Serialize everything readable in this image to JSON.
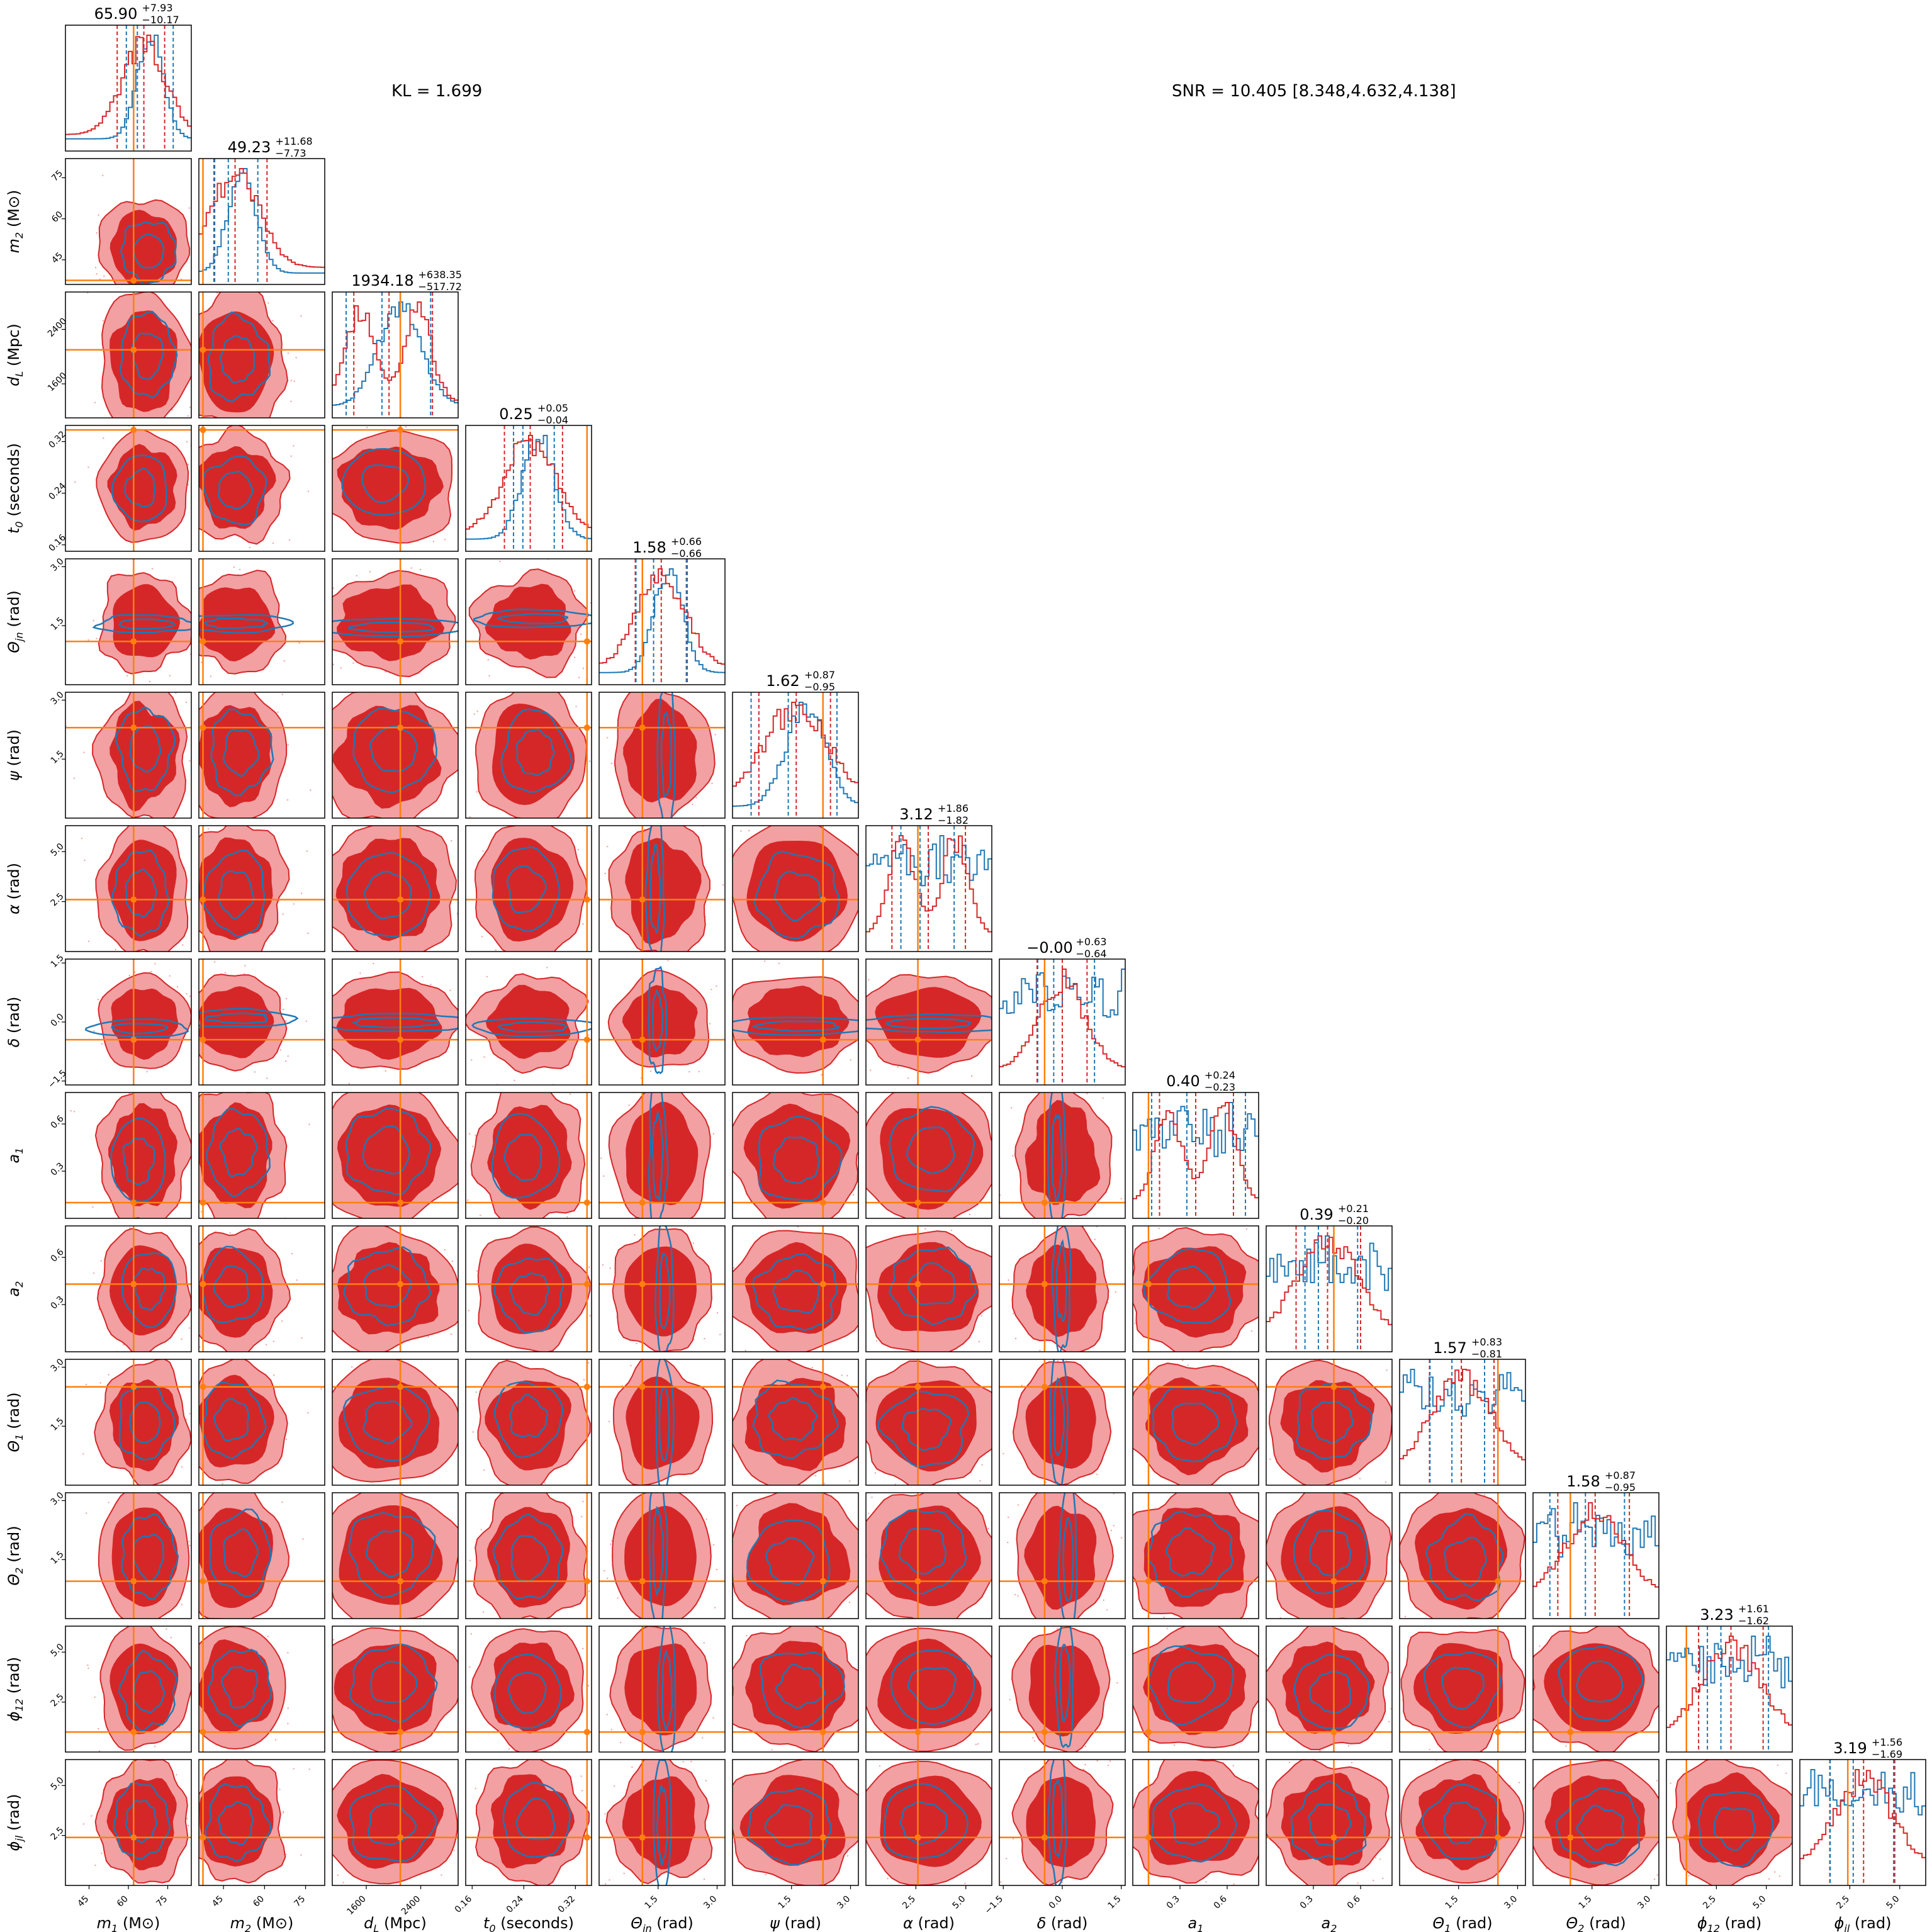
{
  "header": {
    "kl": "KL = 1.699",
    "snr": "SNR = 10.405 [8.348,4.632,4.138]"
  },
  "colors": {
    "posterior_a_fill_outer": "#f2a0a2",
    "posterior_a_fill_inner": "#d62728",
    "posterior_a_line": "#d62728",
    "posterior_b_line": "#1f77b4",
    "truth": "#ff7f0e"
  },
  "chart_data": {
    "type": "corner",
    "series": [
      {
        "name": "",
        "color": "#d62728",
        "style": "filled-contours"
      },
      {
        "name": "",
        "color": "#1f77b4",
        "style": "line-contours"
      }
    ],
    "parameters": [
      {
        "key": "m1",
        "label_base": "m",
        "label_sub": "1",
        "label_unit": " (M⊙)",
        "range": [
          36,
          84
        ],
        "ticks": [
          45,
          60,
          75
        ],
        "truth": 62,
        "median": 65.9,
        "plus": 7.93,
        "minus": 10.17,
        "title_main": "65.90",
        "title_plus": "+7.93",
        "title_minus": "−10.17"
      },
      {
        "key": "m2",
        "label_base": "m",
        "label_sub": "2",
        "label_unit": " (M⊙)",
        "range": [
          36,
          82
        ],
        "ticks": [
          45,
          60,
          75
        ],
        "truth": 37.5,
        "median": 49.23,
        "plus": 11.68,
        "minus": 7.73,
        "title_main": "49.23",
        "title_plus": "+11.68",
        "title_minus": "−7.73"
      },
      {
        "key": "dL",
        "label_base": "d",
        "label_sub": "L",
        "label_unit": " (Mpc)",
        "range": [
          1100,
          2950
        ],
        "ticks": [
          1600,
          2400
        ],
        "truth": 2100,
        "median": 1934.18,
        "plus": 638.35,
        "minus": 517.72,
        "title_main": "1934.18",
        "title_plus": "+638.35",
        "title_minus": "−517.72"
      },
      {
        "key": "t0",
        "label_base": "t",
        "label_sub": "0",
        "label_unit": " (seconds)",
        "range": [
          0.15,
          0.345
        ],
        "ticks": [
          0.16,
          0.24,
          0.32
        ],
        "tick_labels": [
          "0.16",
          "0.24",
          "0.32"
        ],
        "truth": 0.338,
        "median": 0.25,
        "plus": 0.05,
        "minus": 0.04,
        "title_main": "0.25",
        "title_plus": "+0.05",
        "title_minus": "−0.04"
      },
      {
        "key": "thetajn",
        "label_base": "Θ",
        "label_sub": "jn",
        "label_unit": " (rad)",
        "range": [
          0,
          3.2
        ],
        "ticks": [
          1.5,
          3.0
        ],
        "tick_labels": [
          "1.5",
          "3.0"
        ],
        "truth": 1.1,
        "median": 1.58,
        "plus": 0.66,
        "minus": 0.66,
        "title_main": "1.58",
        "title_plus": "+0.66",
        "title_minus": "−0.66"
      },
      {
        "key": "psi",
        "label_base": "ψ",
        "label_sub": "",
        "label_unit": " (rad)",
        "range": [
          0,
          3.2
        ],
        "ticks": [
          1.5,
          3.0
        ],
        "tick_labels": [
          "1.5",
          "3.0"
        ],
        "truth": 2.3,
        "median": 1.62,
        "plus": 0.87,
        "minus": 0.95,
        "title_main": "1.62",
        "title_plus": "+0.87",
        "title_minus": "−0.95"
      },
      {
        "key": "alpha",
        "label_base": "α",
        "label_sub": "",
        "label_unit": " (rad)",
        "range": [
          0,
          6.3
        ],
        "ticks": [
          2.5,
          5.0
        ],
        "tick_labels": [
          "2.5",
          "5.0"
        ],
        "truth": 2.6,
        "median": 3.12,
        "plus": 1.86,
        "minus": 1.82,
        "title_main": "3.12",
        "title_plus": "+1.86",
        "title_minus": "−1.82"
      },
      {
        "key": "delta",
        "label_base": "δ",
        "label_sub": "",
        "label_unit": " (rad)",
        "range": [
          -1.6,
          1.6
        ],
        "ticks": [
          -1.5,
          0.0,
          1.5
        ],
        "tick_labels": [
          "−1.5",
          "0.0",
          "1.5"
        ],
        "truth": -0.45,
        "median": 0.0,
        "plus": 0.63,
        "minus": 0.64,
        "title_main": "−0.00",
        "title_plus": "+0.63",
        "title_minus": "−0.64"
      },
      {
        "key": "a1",
        "label_base": "a",
        "label_sub": "1",
        "label_unit": "",
        "range": [
          0,
          0.8
        ],
        "ticks": [
          0.3,
          0.6
        ],
        "tick_labels": [
          "0.3",
          "0.6"
        ],
        "truth": 0.1,
        "median": 0.4,
        "plus": 0.24,
        "minus": 0.23,
        "title_main": "0.40",
        "title_plus": "+0.24",
        "title_minus": "−0.23"
      },
      {
        "key": "a2",
        "label_base": "a",
        "label_sub": "2",
        "label_unit": "",
        "range": [
          0,
          0.8
        ],
        "ticks": [
          0.3,
          0.6
        ],
        "tick_labels": [
          "0.3",
          "0.6"
        ],
        "truth": 0.43,
        "median": 0.39,
        "plus": 0.21,
        "minus": 0.2,
        "title_main": "0.39",
        "title_plus": "+0.21",
        "title_minus": "−0.20"
      },
      {
        "key": "theta1",
        "label_base": "Θ",
        "label_sub": "1",
        "label_unit": " (rad)",
        "range": [
          0,
          3.2
        ],
        "ticks": [
          1.5,
          3.0
        ],
        "tick_labels": [
          "1.5",
          "3.0"
        ],
        "truth": 2.5,
        "median": 1.57,
        "plus": 0.83,
        "minus": 0.81,
        "title_main": "1.57",
        "title_plus": "+0.83",
        "title_minus": "−0.81"
      },
      {
        "key": "theta2",
        "label_base": "Θ",
        "label_sub": "2",
        "label_unit": " (rad)",
        "range": [
          0,
          3.2
        ],
        "ticks": [
          1.5,
          3.0
        ],
        "tick_labels": [
          "1.5",
          "3.0"
        ],
        "truth": 0.95,
        "median": 1.58,
        "plus": 0.87,
        "minus": 0.95,
        "title_main": "1.58",
        "title_plus": "+0.87",
        "title_minus": "−0.95"
      },
      {
        "key": "phi12",
        "label_base": "ϕ",
        "label_sub": "12",
        "label_unit": " (rad)",
        "range": [
          0,
          6.3
        ],
        "ticks": [
          2.5,
          5.0
        ],
        "tick_labels": [
          "2.5",
          "5.0"
        ],
        "truth": 1.0,
        "median": 3.23,
        "plus": 1.61,
        "minus": 1.62,
        "title_main": "3.23",
        "title_plus": "+1.61",
        "title_minus": "−1.62"
      },
      {
        "key": "phijl",
        "label_base": "ϕ",
        "label_sub": "jl",
        "label_unit": " (rad)",
        "range": [
          0,
          6.3
        ],
        "ticks": [
          2.5,
          5.0
        ],
        "tick_labels": [
          "2.5",
          "5.0"
        ],
        "truth": 2.4,
        "median": 3.19,
        "plus": 1.56,
        "minus": 1.69,
        "title_main": "3.19",
        "title_plus": "+1.56",
        "title_minus": "−1.69"
      }
    ]
  }
}
